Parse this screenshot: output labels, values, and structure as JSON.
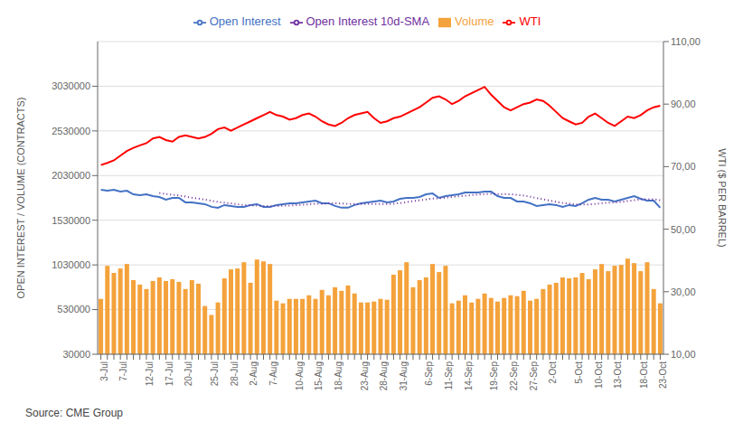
{
  "chart_data": {
    "type": "bar",
    "categories": [
      "3-Jul",
      null,
      null,
      "7-Jul",
      null,
      null,
      null,
      "12-Jul",
      null,
      null,
      "17-Jul",
      null,
      null,
      "20-Jul",
      null,
      null,
      null,
      "25-Jul",
      null,
      null,
      "28-Jul",
      null,
      null,
      "2-Aug",
      null,
      null,
      "7-Aug",
      null,
      null,
      null,
      "10-Aug",
      null,
      null,
      "15-Aug",
      null,
      null,
      "18-Aug",
      null,
      null,
      null,
      "23-Aug",
      null,
      null,
      "28-Aug",
      null,
      null,
      "31-Aug",
      null,
      null,
      null,
      "6-Sep",
      null,
      null,
      "11-Sep",
      null,
      null,
      "14-Sep",
      null,
      null,
      null,
      "19-Sep",
      null,
      null,
      "22-Sep",
      null,
      null,
      "27-Sep",
      null,
      null,
      "2-Oct",
      null,
      null,
      null,
      "5-Oct",
      null,
      null,
      "10-Oct",
      null,
      null,
      "13-Oct",
      null,
      null,
      null,
      "18-Oct",
      null,
      null,
      "23-Oct"
    ],
    "ylabel": "OPEN INTEREST / VOLUME (CONTRACTS)",
    "y2label": "WTI ($ PER BARREL)",
    "ylim": [
      30000,
      3530000
    ],
    "yticks": [
      30000,
      530000,
      1030000,
      1530000,
      2030000,
      2530000,
      3030000
    ],
    "y2lim": [
      10.0,
      110.0
    ],
    "y2ticks": [
      {
        "value": 10.0,
        "label": "10,00"
      },
      {
        "value": 30.0,
        "label": "30,00"
      },
      {
        "value": 50.0,
        "label": "50,00"
      },
      {
        "value": 70.0,
        "label": "70,00"
      },
      {
        "value": 90.0,
        "label": "90,00"
      },
      {
        "value": 110.0,
        "label": "110,00"
      }
    ],
    "grid": true,
    "legend": "top",
    "annotations": [
      "Source: CME Group"
    ],
    "series": [
      {
        "name": "Volume",
        "type": "bar",
        "color": "#F4A23B",
        "values": [
          650000,
          1020000,
          940000,
          990000,
          1040000,
          860000,
          810000,
          760000,
          850000,
          890000,
          850000,
          870000,
          840000,
          760000,
          860000,
          820000,
          570000,
          470000,
          610000,
          880000,
          980000,
          990000,
          1060000,
          830000,
          1090000,
          1070000,
          1040000,
          630000,
          600000,
          650000,
          650000,
          650000,
          690000,
          650000,
          750000,
          690000,
          780000,
          740000,
          800000,
          710000,
          610000,
          610000,
          620000,
          650000,
          640000,
          920000,
          970000,
          1060000,
          780000,
          860000,
          890000,
          1040000,
          950000,
          1020000,
          600000,
          630000,
          690000,
          610000,
          650000,
          710000,
          660000,
          620000,
          660000,
          690000,
          680000,
          740000,
          630000,
          650000,
          760000,
          810000,
          830000,
          890000,
          880000,
          890000,
          940000,
          870000,
          980000,
          1040000,
          960000,
          1020000,
          1030000,
          1100000,
          1050000,
          960000,
          1060000,
          760000,
          600000
        ]
      },
      {
        "name": "Open Interest",
        "type": "line",
        "color": "#4472C4",
        "values": [
          1870000,
          1860000,
          1870000,
          1850000,
          1860000,
          1820000,
          1810000,
          1820000,
          1800000,
          1790000,
          1760000,
          1780000,
          1780000,
          1730000,
          1730000,
          1720000,
          1710000,
          1680000,
          1670000,
          1700000,
          1690000,
          1680000,
          1680000,
          1700000,
          1710000,
          1680000,
          1680000,
          1700000,
          1710000,
          1720000,
          1720000,
          1730000,
          1740000,
          1750000,
          1720000,
          1720000,
          1690000,
          1670000,
          1670000,
          1700000,
          1720000,
          1730000,
          1740000,
          1750000,
          1730000,
          1740000,
          1770000,
          1780000,
          1780000,
          1790000,
          1820000,
          1830000,
          1780000,
          1800000,
          1810000,
          1820000,
          1840000,
          1840000,
          1840000,
          1850000,
          1850000,
          1800000,
          1780000,
          1780000,
          1740000,
          1740000,
          1720000,
          1690000,
          1700000,
          1710000,
          1700000,
          1680000,
          1700000,
          1690000,
          1720000,
          1760000,
          1780000,
          1760000,
          1760000,
          1740000,
          1760000,
          1780000,
          1800000,
          1770000,
          1750000,
          1750000,
          1670000
        ]
      },
      {
        "name": "Open Interest 10d-SMA",
        "type": "line",
        "color": "#7030A0",
        "line_style": "dotted",
        "values": [
          null,
          null,
          null,
          null,
          null,
          null,
          null,
          null,
          null,
          1835000,
          1824000,
          1816000,
          1807000,
          1795000,
          1782000,
          1772000,
          1762000,
          1748000,
          1735000,
          1726000,
          1719000,
          1709000,
          1699000,
          1696000,
          1694000,
          1690000,
          1687000,
          1689000,
          1693000,
          1695000,
          1698000,
          1703000,
          1709000,
          1714000,
          1715000,
          1719000,
          1720000,
          1717000,
          1713000,
          1711000,
          1711000,
          1711000,
          1711000,
          1711000,
          1712000,
          1714000,
          1722000,
          1733000,
          1744000,
          1753000,
          1763000,
          1773000,
          1777000,
          1782000,
          1790000,
          1798000,
          1805000,
          1811000,
          1817000,
          1823000,
          1826000,
          1823000,
          1823000,
          1821000,
          1814000,
          1806000,
          1794000,
          1779000,
          1765000,
          1751000,
          1736000,
          1724000,
          1716000,
          1707000,
          1705000,
          1707000,
          1713000,
          1720000,
          1726000,
          1729000,
          1735000,
          1745000,
          1755000,
          1763000,
          1766000,
          1765000,
          1754000
        ]
      },
      {
        "name": "WTI",
        "type": "line",
        "color": "#FF0000",
        "axis": "y2",
        "values": [
          70.5,
          71.2,
          72.0,
          73.5,
          75.0,
          76.0,
          76.8,
          77.5,
          79.0,
          79.5,
          78.5,
          78.0,
          79.5,
          80.0,
          79.5,
          79.0,
          79.5,
          80.5,
          82.0,
          82.5,
          81.5,
          82.5,
          83.5,
          84.5,
          85.5,
          86.5,
          87.5,
          86.5,
          86.0,
          85.0,
          85.5,
          86.5,
          87.0,
          86.0,
          84.5,
          83.5,
          83.0,
          84.0,
          85.5,
          86.5,
          87.0,
          87.5,
          85.5,
          84.0,
          84.5,
          85.5,
          86.0,
          87.0,
          88.0,
          89.0,
          90.5,
          92.0,
          92.5,
          91.5,
          90.0,
          91.0,
          92.5,
          93.5,
          94.5,
          95.5,
          93.0,
          91.0,
          89.0,
          88.0,
          89.0,
          90.0,
          90.5,
          91.5,
          91.0,
          89.5,
          87.5,
          85.5,
          84.5,
          83.5,
          84.0,
          86.0,
          87.0,
          85.5,
          84.0,
          83.0,
          84.5,
          86.0,
          85.5,
          86.5,
          88.0,
          89.0,
          89.5
        ]
      }
    ]
  }
}
